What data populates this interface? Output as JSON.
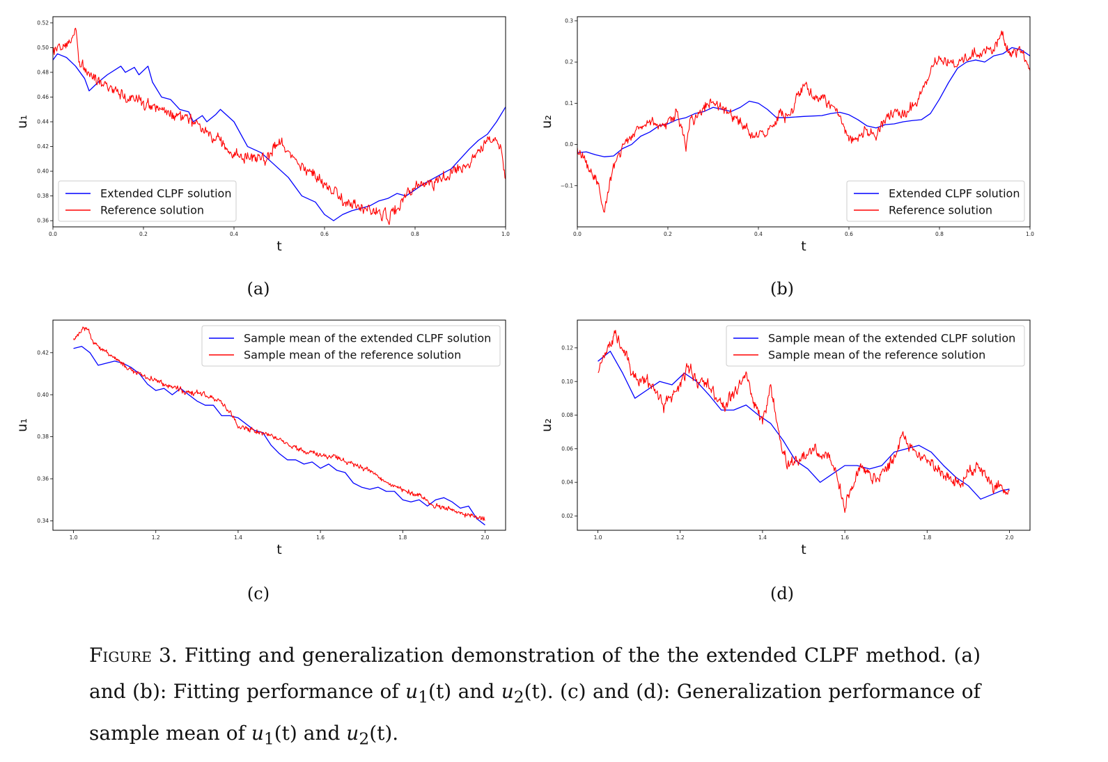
{
  "colors": {
    "extended": "#0000ff",
    "reference": "#ff0000",
    "frame": "#000000"
  },
  "chart_data": [
    {
      "panel": "a",
      "type": "line",
      "panel_label": "(a)",
      "xlabel": "t",
      "ylabel": "u₁",
      "xlim": [
        0.0,
        1.0
      ],
      "ylim": [
        0.355,
        0.525
      ],
      "xticks": [
        0.0,
        0.2,
        0.4,
        0.6,
        0.8,
        1.0
      ],
      "xtick_labels": [
        "0.0",
        "0.2",
        "0.4",
        "0.6",
        "0.8",
        "1.0"
      ],
      "yticks": [
        0.36,
        0.38,
        0.4,
        0.42,
        0.44,
        0.46,
        0.48,
        0.5,
        0.52
      ],
      "ytick_labels": [
        "0.36",
        "0.38",
        "0.40",
        "0.42",
        "0.44",
        "0.46",
        "0.48",
        "0.50",
        "0.52"
      ],
      "legend_position": "lower-left",
      "noise_seed": 11,
      "series": [
        {
          "name": "Extended CLPF solution",
          "color": "#0000ff",
          "style": "smooth",
          "x": [
            0.0,
            0.01,
            0.03,
            0.05,
            0.07,
            0.08,
            0.1,
            0.12,
            0.15,
            0.16,
            0.18,
            0.19,
            0.21,
            0.22,
            0.24,
            0.26,
            0.28,
            0.3,
            0.31,
            0.33,
            0.34,
            0.36,
            0.37,
            0.4,
            0.43,
            0.46,
            0.49,
            0.52,
            0.55,
            0.58,
            0.6,
            0.62,
            0.64,
            0.66,
            0.68,
            0.7,
            0.72,
            0.74,
            0.76,
            0.78,
            0.8,
            0.82,
            0.84,
            0.86,
            0.88,
            0.9,
            0.92,
            0.94,
            0.96,
            0.98,
            1.0
          ],
          "y": [
            0.49,
            0.495,
            0.492,
            0.485,
            0.475,
            0.465,
            0.472,
            0.478,
            0.485,
            0.48,
            0.484,
            0.478,
            0.485,
            0.472,
            0.46,
            0.458,
            0.45,
            0.448,
            0.44,
            0.445,
            0.44,
            0.446,
            0.45,
            0.44,
            0.42,
            0.415,
            0.405,
            0.395,
            0.38,
            0.375,
            0.365,
            0.36,
            0.365,
            0.368,
            0.37,
            0.372,
            0.376,
            0.378,
            0.382,
            0.38,
            0.385,
            0.39,
            0.394,
            0.398,
            0.402,
            0.41,
            0.418,
            0.425,
            0.43,
            0.44,
            0.452
          ]
        },
        {
          "name": "Reference solution",
          "color": "#ff0000",
          "style": "rough",
          "x": [
            0.0,
            0.02,
            0.04,
            0.05,
            0.06,
            0.1,
            0.15,
            0.2,
            0.25,
            0.3,
            0.35,
            0.4,
            0.45,
            0.47,
            0.5,
            0.53,
            0.56,
            0.6,
            0.64,
            0.68,
            0.72,
            0.74,
            0.76,
            0.8,
            0.84,
            0.88,
            0.92,
            0.95,
            0.97,
            0.99,
            1.0
          ],
          "y": [
            0.498,
            0.502,
            0.508,
            0.516,
            0.485,
            0.475,
            0.462,
            0.455,
            0.448,
            0.443,
            0.428,
            0.415,
            0.41,
            0.41,
            0.425,
            0.41,
            0.402,
            0.39,
            0.378,
            0.37,
            0.368,
            0.362,
            0.37,
            0.39,
            0.39,
            0.4,
            0.405,
            0.42,
            0.428,
            0.42,
            0.392
          ],
          "noise": 0.0045
        }
      ]
    },
    {
      "panel": "b",
      "type": "line",
      "panel_label": "(b)",
      "xlabel": "t",
      "ylabel": "u₂",
      "xlim": [
        0.0,
        1.0
      ],
      "ylim": [
        -0.2,
        0.31
      ],
      "xticks": [
        0.0,
        0.2,
        0.4,
        0.6,
        0.8,
        1.0
      ],
      "xtick_labels": [
        "0.0",
        "0.2",
        "0.4",
        "0.6",
        "0.8",
        "1.0"
      ],
      "yticks": [
        -0.1,
        0.0,
        0.1,
        0.2,
        0.3
      ],
      "ytick_labels": [
        "−0.1",
        "0.0",
        "0.1",
        "0.2",
        "0.3"
      ],
      "legend_position": "lower-right",
      "noise_seed": 23,
      "series": [
        {
          "name": "Extended CLPF solution",
          "color": "#0000ff",
          "style": "smooth",
          "x": [
            0.0,
            0.02,
            0.04,
            0.06,
            0.08,
            0.1,
            0.12,
            0.14,
            0.16,
            0.18,
            0.2,
            0.22,
            0.24,
            0.26,
            0.28,
            0.3,
            0.32,
            0.34,
            0.36,
            0.38,
            0.4,
            0.42,
            0.44,
            0.46,
            0.5,
            0.54,
            0.56,
            0.58,
            0.6,
            0.62,
            0.64,
            0.66,
            0.68,
            0.7,
            0.72,
            0.74,
            0.76,
            0.78,
            0.8,
            0.82,
            0.84,
            0.86,
            0.88,
            0.9,
            0.92,
            0.94,
            0.96,
            0.98,
            1.0
          ],
          "y": [
            -0.02,
            -0.018,
            -0.025,
            -0.03,
            -0.028,
            -0.01,
            0.0,
            0.02,
            0.03,
            0.045,
            0.05,
            0.06,
            0.065,
            0.075,
            0.08,
            0.09,
            0.085,
            0.08,
            0.09,
            0.105,
            0.1,
            0.085,
            0.065,
            0.065,
            0.068,
            0.07,
            0.075,
            0.078,
            0.072,
            0.06,
            0.045,
            0.04,
            0.048,
            0.05,
            0.055,
            0.058,
            0.06,
            0.075,
            0.11,
            0.15,
            0.185,
            0.2,
            0.205,
            0.2,
            0.215,
            0.22,
            0.235,
            0.23,
            0.215
          ]
        },
        {
          "name": "Reference solution",
          "color": "#ff0000",
          "style": "rough",
          "x": [
            0.0,
            0.02,
            0.04,
            0.05,
            0.06,
            0.08,
            0.1,
            0.12,
            0.14,
            0.16,
            0.18,
            0.2,
            0.22,
            0.24,
            0.25,
            0.27,
            0.29,
            0.31,
            0.33,
            0.35,
            0.37,
            0.39,
            0.41,
            0.43,
            0.45,
            0.47,
            0.5,
            0.52,
            0.55,
            0.57,
            0.59,
            0.6,
            0.62,
            0.64,
            0.66,
            0.68,
            0.7,
            0.72,
            0.74,
            0.77,
            0.8,
            0.83,
            0.86,
            0.89,
            0.92,
            0.94,
            0.96,
            0.98,
            1.0
          ],
          "y": [
            -0.01,
            -0.05,
            -0.09,
            -0.12,
            -0.16,
            -0.05,
            -0.01,
            0.02,
            0.04,
            0.06,
            0.05,
            0.05,
            0.08,
            0.0,
            0.06,
            0.07,
            0.1,
            0.09,
            0.08,
            0.07,
            0.05,
            0.02,
            0.03,
            0.04,
            0.07,
            0.07,
            0.15,
            0.12,
            0.1,
            0.09,
            0.05,
            0.01,
            0.02,
            0.04,
            0.02,
            0.06,
            0.08,
            0.07,
            0.09,
            0.15,
            0.22,
            0.19,
            0.21,
            0.22,
            0.24,
            0.26,
            0.22,
            0.23,
            0.18
          ],
          "noise": 0.013
        }
      ]
    },
    {
      "panel": "c",
      "type": "line",
      "panel_label": "(c)",
      "xlabel": "t",
      "ylabel": "u₁",
      "xlim": [
        0.95,
        2.05
      ],
      "ylim": [
        0.3355,
        0.4355
      ],
      "xticks": [
        1.0,
        1.2,
        1.4,
        1.6,
        1.8,
        2.0
      ],
      "xtick_labels": [
        "1.0",
        "1.2",
        "1.4",
        "1.6",
        "1.8",
        "2.0"
      ],
      "yticks": [
        0.34,
        0.36,
        0.38,
        0.4,
        0.42
      ],
      "ytick_labels": [
        "0.34",
        "0.36",
        "0.38",
        "0.40",
        "0.42"
      ],
      "legend_position": "upper-right",
      "noise_seed": 37,
      "series": [
        {
          "name": "Sample mean of the extended CLPF solution",
          "color": "#0000ff",
          "style": "smooth",
          "x": [
            1.0,
            1.02,
            1.04,
            1.06,
            1.08,
            1.1,
            1.12,
            1.14,
            1.16,
            1.18,
            1.2,
            1.22,
            1.24,
            1.26,
            1.28,
            1.3,
            1.32,
            1.34,
            1.36,
            1.38,
            1.4,
            1.42,
            1.44,
            1.46,
            1.48,
            1.5,
            1.52,
            1.54,
            1.56,
            1.58,
            1.6,
            1.62,
            1.64,
            1.66,
            1.68,
            1.7,
            1.72,
            1.74,
            1.76,
            1.78,
            1.8,
            1.82,
            1.84,
            1.86,
            1.88,
            1.9,
            1.92,
            1.94,
            1.96,
            1.98,
            2.0
          ],
          "y": [
            0.422,
            0.423,
            0.42,
            0.414,
            0.415,
            0.416,
            0.415,
            0.413,
            0.41,
            0.405,
            0.402,
            0.403,
            0.4,
            0.403,
            0.4,
            0.397,
            0.395,
            0.395,
            0.39,
            0.39,
            0.389,
            0.386,
            0.383,
            0.382,
            0.376,
            0.372,
            0.369,
            0.369,
            0.367,
            0.368,
            0.365,
            0.367,
            0.364,
            0.363,
            0.358,
            0.356,
            0.355,
            0.356,
            0.354,
            0.354,
            0.35,
            0.349,
            0.35,
            0.347,
            0.35,
            0.351,
            0.349,
            0.346,
            0.347,
            0.341,
            0.338
          ]
        },
        {
          "name": "Sample mean of the reference solution",
          "color": "#ff0000",
          "style": "rough",
          "x": [
            1.0,
            1.02,
            1.03,
            1.05,
            1.08,
            1.1,
            1.13,
            1.16,
            1.2,
            1.24,
            1.28,
            1.32,
            1.36,
            1.38,
            1.4,
            1.44,
            1.48,
            1.52,
            1.56,
            1.6,
            1.64,
            1.68,
            1.72,
            1.76,
            1.8,
            1.84,
            1.88,
            1.92,
            1.96,
            2.0
          ],
          "y": [
            0.426,
            0.43,
            0.432,
            0.425,
            0.42,
            0.417,
            0.413,
            0.41,
            0.407,
            0.404,
            0.401,
            0.4,
            0.396,
            0.392,
            0.385,
            0.383,
            0.381,
            0.376,
            0.373,
            0.371,
            0.37,
            0.367,
            0.364,
            0.358,
            0.355,
            0.352,
            0.347,
            0.345,
            0.343,
            0.341
          ],
          "noise": 0.0012
        }
      ]
    },
    {
      "panel": "d",
      "type": "line",
      "panel_label": "(d)",
      "xlabel": "t",
      "ylabel": "u₂",
      "xlim": [
        0.95,
        2.05
      ],
      "ylim": [
        0.0115,
        0.1365
      ],
      "xticks": [
        1.0,
        1.2,
        1.4,
        1.6,
        1.8,
        2.0
      ],
      "xtick_labels": [
        "1.0",
        "1.2",
        "1.4",
        "1.6",
        "1.8",
        "2.0"
      ],
      "yticks": [
        0.02,
        0.04,
        0.06,
        0.08,
        0.1,
        0.12
      ],
      "ytick_labels": [
        "0.02",
        "0.04",
        "0.06",
        "0.08",
        "0.10",
        "0.12"
      ],
      "legend_position": "upper-right",
      "noise_seed": 53,
      "series": [
        {
          "name": "Sample mean of the extended CLPF solution",
          "color": "#0000ff",
          "style": "smooth",
          "x": [
            1.0,
            1.03,
            1.06,
            1.09,
            1.12,
            1.15,
            1.18,
            1.21,
            1.24,
            1.27,
            1.3,
            1.33,
            1.36,
            1.39,
            1.42,
            1.45,
            1.48,
            1.51,
            1.54,
            1.57,
            1.6,
            1.63,
            1.66,
            1.69,
            1.72,
            1.75,
            1.78,
            1.81,
            1.84,
            1.87,
            1.9,
            1.93,
            1.96,
            1.98,
            2.0
          ],
          "y": [
            0.112,
            0.118,
            0.105,
            0.09,
            0.095,
            0.1,
            0.098,
            0.105,
            0.1,
            0.092,
            0.083,
            0.083,
            0.086,
            0.08,
            0.075,
            0.065,
            0.053,
            0.048,
            0.04,
            0.045,
            0.05,
            0.05,
            0.048,
            0.05,
            0.058,
            0.06,
            0.062,
            0.058,
            0.05,
            0.043,
            0.038,
            0.03,
            0.033,
            0.035,
            0.036
          ]
        },
        {
          "name": "Sample mean of the reference solution",
          "color": "#ff0000",
          "style": "rough",
          "x": [
            1.0,
            1.02,
            1.04,
            1.06,
            1.08,
            1.1,
            1.12,
            1.14,
            1.16,
            1.18,
            1.2,
            1.22,
            1.24,
            1.26,
            1.28,
            1.3,
            1.32,
            1.34,
            1.36,
            1.38,
            1.4,
            1.42,
            1.44,
            1.46,
            1.48,
            1.5,
            1.52,
            1.54,
            1.56,
            1.58,
            1.6,
            1.62,
            1.64,
            1.66,
            1.68,
            1.7,
            1.72,
            1.74,
            1.76,
            1.78,
            1.8,
            1.82,
            1.84,
            1.86,
            1.88,
            1.9,
            1.92,
            1.94,
            1.96,
            1.98,
            2.0
          ],
          "y": [
            0.106,
            0.118,
            0.128,
            0.12,
            0.105,
            0.1,
            0.1,
            0.095,
            0.085,
            0.09,
            0.098,
            0.11,
            0.1,
            0.102,
            0.093,
            0.085,
            0.09,
            0.095,
            0.105,
            0.087,
            0.075,
            0.098,
            0.07,
            0.05,
            0.052,
            0.055,
            0.06,
            0.055,
            0.06,
            0.045,
            0.025,
            0.04,
            0.05,
            0.045,
            0.042,
            0.048,
            0.055,
            0.07,
            0.06,
            0.055,
            0.055,
            0.05,
            0.045,
            0.042,
            0.04,
            0.045,
            0.05,
            0.045,
            0.038,
            0.036,
            0.034
          ],
          "noise": 0.0034
        }
      ]
    }
  ],
  "caption": {
    "figure_label": "Figure 3.",
    "text_1": " Fitting and generalization demonstration of the the extended CLPF method.   (a) and (b):  Fitting performance of ",
    "u1_a": "u",
    "sub1_a": "1",
    "t_a": "(t)",
    "and_1": " and ",
    "u2_a": "u",
    "sub2_a": "2",
    "t_b": "(t).",
    "text_2": "   (c) and (d): Generalization performance of sample mean of ",
    "u1_b": "u",
    "sub1_b": "1",
    "t_c": "(t)",
    "and_2": " and ",
    "u2_b": "u",
    "sub2_b": "2",
    "t_d": "(t)."
  }
}
